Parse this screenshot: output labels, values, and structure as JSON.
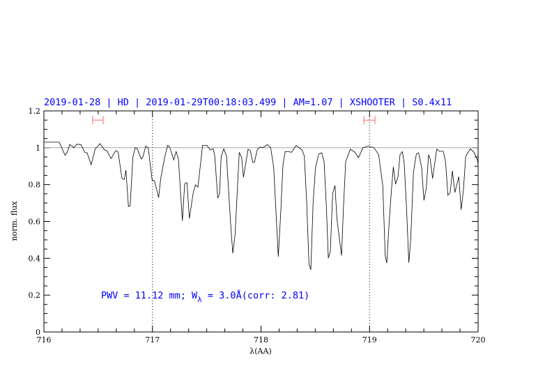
{
  "chart_data": {
    "type": "line",
    "title": "2019-01-28 | HD | 2019-01-29T00:18:03.499 | AM=1.07 | XSHOOTER | S0.4x11",
    "xlabel": "λ(AA)",
    "ylabel": "norm. flux",
    "xlim": [
      716,
      720
    ],
    "ylim": [
      0,
      1.2
    ],
    "x_ticks": [
      "716",
      "717",
      "718",
      "719",
      "720"
    ],
    "y_ticks": [
      "0",
      "0.2",
      "0.4",
      "0.6",
      "0.8",
      "1",
      "1.2"
    ],
    "grid": false,
    "annotation": "PWV = 11.12 mm; W",
    "annotation_sub": "λ",
    "annotation_tail": " = 3.0Å(corr: 2.81)",
    "continuum_level": 1.0,
    "vertical_markers": [
      717,
      719
    ],
    "intervals": [
      {
        "x0": 716.449,
        "x1": 716.546,
        "y": 1.15
      },
      {
        "x0": 718.947,
        "x1": 719.05,
        "y": 1.15
      }
    ],
    "colors": {
      "spectrum": "#000000",
      "continuum": "#999999",
      "interval": "#ff6666",
      "text": "#0000ff"
    },
    "series": [
      {
        "x": [
          716.0,
          716.013,
          716.141,
          716.195,
          716.216,
          716.238,
          716.276,
          716.302,
          716.34,
          716.377,
          716.398,
          716.435,
          716.473,
          716.516,
          716.559,
          716.58,
          716.618,
          716.661,
          716.683,
          716.719,
          716.74,
          716.756,
          716.779,
          716.794,
          716.82,
          716.841,
          716.858,
          716.897,
          716.912,
          716.939,
          716.961,
          716.997,
          717.019,
          717.057,
          717.077,
          717.115,
          717.141,
          717.158,
          717.196,
          717.218,
          717.239,
          717.276,
          717.297,
          717.318,
          717.34,
          717.376,
          717.398,
          717.419,
          717.462,
          717.501,
          717.533,
          717.56,
          717.575,
          717.601,
          717.618,
          717.633,
          717.657,
          717.682,
          717.719,
          717.74,
          717.761,
          717.8,
          717.822,
          717.838,
          717.881,
          717.902,
          717.924,
          717.939,
          717.967,
          717.992,
          718.014,
          718.035,
          718.057,
          718.089,
          718.117,
          718.159,
          718.181,
          718.202,
          718.223,
          718.254,
          718.281,
          718.324,
          718.378,
          718.399,
          718.421,
          718.442,
          718.459,
          718.48,
          718.502,
          718.532,
          718.56,
          718.581,
          718.602,
          718.62,
          718.639,
          718.66,
          718.682,
          718.699,
          718.742,
          718.759,
          718.78,
          718.823,
          718.866,
          718.898,
          718.939,
          718.988,
          719.041,
          719.084,
          719.122,
          719.144,
          719.159,
          719.18,
          719.202,
          719.219,
          719.24,
          719.262,
          719.281,
          719.302,
          719.319,
          719.341,
          719.362,
          719.379,
          719.405,
          719.431,
          719.452,
          719.48,
          719.501,
          719.523,
          719.544,
          719.559,
          719.581,
          719.619,
          719.645,
          719.679,
          719.7,
          719.722,
          719.743,
          719.763,
          719.786,
          719.822,
          719.844,
          719.865,
          719.886,
          719.929,
          719.962,
          719.994,
          720.0
        ],
        "y": [
          1.03,
          1.03,
          1.03,
          0.959,
          0.977,
          1.018,
          1.0,
          1.019,
          1.017,
          0.975,
          0.972,
          0.908,
          0.994,
          1.022,
          0.988,
          0.984,
          0.941,
          0.984,
          0.979,
          0.833,
          0.828,
          0.878,
          0.681,
          0.685,
          0.95,
          1.0,
          0.997,
          0.938,
          0.95,
          1.009,
          1.0,
          0.824,
          0.82,
          0.729,
          0.836,
          0.956,
          1.013,
          1.004,
          0.934,
          0.979,
          0.941,
          0.603,
          0.805,
          0.811,
          0.616,
          0.757,
          0.799,
          0.786,
          1.013,
          1.013,
          0.988,
          0.994,
          0.95,
          0.727,
          0.748,
          0.95,
          0.994,
          0.954,
          0.603,
          0.427,
          0.527,
          0.975,
          0.946,
          0.84,
          0.992,
          0.984,
          0.921,
          0.921,
          0.992,
          1.004,
          1.0,
          1.007,
          1.017,
          1.0,
          0.893,
          0.408,
          0.641,
          0.906,
          0.979,
          0.979,
          0.975,
          1.013,
          0.988,
          0.956,
          0.704,
          0.37,
          0.338,
          0.704,
          0.893,
          0.966,
          0.972,
          0.925,
          0.679,
          0.401,
          0.439,
          0.752,
          0.795,
          0.616,
          0.414,
          0.666,
          0.925,
          0.992,
          0.975,
          0.946,
          1.0,
          1.009,
          1.0,
          0.963,
          0.792,
          0.414,
          0.374,
          0.59,
          0.773,
          0.896,
          0.802,
          0.843,
          0.963,
          0.979,
          0.921,
          0.666,
          0.376,
          0.502,
          0.868,
          0.966,
          0.972,
          0.893,
          0.714,
          0.78,
          0.963,
          0.938,
          0.833,
          0.992,
          0.981,
          0.981,
          0.925,
          0.742,
          0.757,
          0.874,
          0.757,
          0.843,
          0.664,
          0.773,
          0.954,
          0.994,
          0.975,
          0.934,
          0.91
        ]
      }
    ]
  }
}
